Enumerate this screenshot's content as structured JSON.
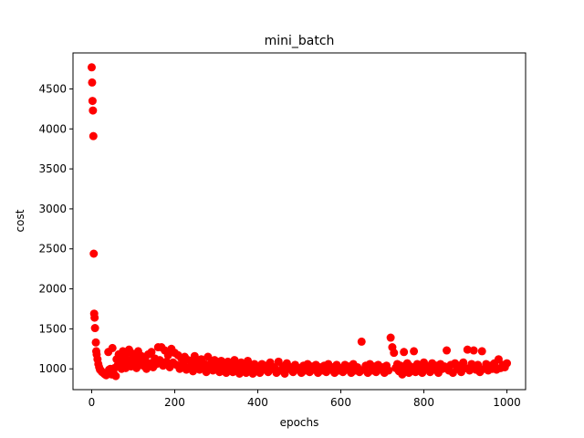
{
  "chart_data": {
    "type": "scatter",
    "title": "mini_batch",
    "xlabel": "epochs",
    "ylabel": "cost",
    "xlim": [
      -45,
      1045
    ],
    "ylim": [
      740,
      4950
    ],
    "xticks": [
      0,
      200,
      400,
      600,
      800,
      1000
    ],
    "yticks": [
      1000,
      1500,
      2000,
      2500,
      3000,
      3500,
      4000,
      4500
    ],
    "grid": false,
    "legend": "none",
    "marker_color": "#ff0000",
    "series": [
      {
        "points": [
          [
            0,
            4770
          ],
          [
            1,
            4580
          ],
          [
            2,
            4350
          ],
          [
            3,
            4230
          ],
          [
            4,
            3910
          ],
          [
            5,
            2440
          ],
          [
            6,
            1690
          ],
          [
            7,
            1640
          ],
          [
            8,
            1510
          ],
          [
            10,
            1330
          ],
          [
            11,
            1220
          ],
          [
            12,
            1180
          ],
          [
            14,
            1120
          ],
          [
            16,
            1060
          ],
          [
            18,
            1020
          ],
          [
            20,
            990
          ],
          [
            22,
            980
          ],
          [
            25,
            960
          ],
          [
            28,
            950
          ],
          [
            30,
            940
          ],
          [
            32,
            930
          ],
          [
            35,
            920
          ],
          [
            38,
            950
          ],
          [
            40,
            1210
          ],
          [
            42,
            990
          ],
          [
            45,
            1000
          ],
          [
            48,
            930
          ],
          [
            50,
            1260
          ],
          [
            52,
            960
          ],
          [
            55,
            1010
          ],
          [
            58,
            910
          ],
          [
            60,
            1120
          ],
          [
            62,
            1040
          ],
          [
            65,
            1180
          ],
          [
            68,
            1090
          ],
          [
            70,
            1130
          ],
          [
            72,
            1000
          ],
          [
            75,
            1220
          ],
          [
            78,
            1060
          ],
          [
            80,
            1150
          ],
          [
            82,
            1010
          ],
          [
            85,
            1200
          ],
          [
            88,
            1080
          ],
          [
            90,
            1240
          ],
          [
            92,
            1110
          ],
          [
            95,
            1030
          ],
          [
            98,
            1190
          ],
          [
            100,
            1080
          ],
          [
            104,
            1150
          ],
          [
            108,
            1010
          ],
          [
            112,
            1220
          ],
          [
            116,
            1090
          ],
          [
            120,
            1160
          ],
          [
            124,
            1040
          ],
          [
            128,
            1120
          ],
          [
            132,
            1000
          ],
          [
            136,
            1180
          ],
          [
            140,
            1070
          ],
          [
            144,
            1210
          ],
          [
            148,
            1020
          ],
          [
            152,
            1130
          ],
          [
            156,
            1060
          ],
          [
            160,
            1270
          ],
          [
            164,
            1110
          ],
          [
            168,
            1270
          ],
          [
            172,
            1040
          ],
          [
            176,
            1230
          ],
          [
            180,
            1090
          ],
          [
            184,
            1170
          ],
          [
            188,
            1020
          ],
          [
            192,
            1250
          ],
          [
            196,
            1080
          ],
          [
            200,
            1200
          ],
          [
            204,
            1050
          ],
          [
            208,
            1170
          ],
          [
            212,
            1000
          ],
          [
            216,
            1130
          ],
          [
            220,
            1060
          ],
          [
            224,
            1150
          ],
          [
            228,
            990
          ],
          [
            232,
            1110
          ],
          [
            236,
            1020
          ],
          [
            240,
            1090
          ],
          [
            244,
            970
          ],
          [
            248,
            1160
          ],
          [
            252,
            1040
          ],
          [
            256,
            1080
          ],
          [
            260,
            990
          ],
          [
            264,
            1120
          ],
          [
            268,
            1010
          ],
          [
            272,
            1060
          ],
          [
            276,
            960
          ],
          [
            280,
            1150
          ],
          [
            284,
            1030
          ],
          [
            288,
            1070
          ],
          [
            292,
            980
          ],
          [
            296,
            1110
          ],
          [
            300,
            1020
          ],
          [
            304,
            1050
          ],
          [
            308,
            960
          ],
          [
            312,
            1100
          ],
          [
            316,
            990
          ],
          [
            320,
            1040
          ],
          [
            324,
            950
          ],
          [
            328,
            1090
          ],
          [
            332,
            1000
          ],
          [
            336,
            1030
          ],
          [
            340,
            960
          ],
          [
            344,
            1110
          ],
          [
            348,
            990
          ],
          [
            352,
            1040
          ],
          [
            356,
            940
          ],
          [
            360,
            1080
          ],
          [
            364,
            1010
          ],
          [
            368,
            1050
          ],
          [
            372,
            950
          ],
          [
            376,
            1100
          ],
          [
            380,
            1000
          ],
          [
            384,
            1030
          ],
          [
            388,
            940
          ],
          [
            392,
            1060
          ],
          [
            396,
            980
          ],
          [
            400,
            1010
          ],
          [
            405,
            950
          ],
          [
            410,
            1060
          ],
          [
            415,
            990
          ],
          [
            420,
            1040
          ],
          [
            425,
            960
          ],
          [
            430,
            1080
          ],
          [
            435,
            1000
          ],
          [
            440,
            1020
          ],
          [
            445,
            950
          ],
          [
            450,
            1090
          ],
          [
            455,
            980
          ],
          [
            460,
            1030
          ],
          [
            465,
            940
          ],
          [
            470,
            1070
          ],
          [
            475,
            1000
          ],
          [
            480,
            1020
          ],
          [
            485,
            960
          ],
          [
            490,
            1050
          ],
          [
            495,
            990
          ],
          [
            500,
            1010
          ],
          [
            505,
            950
          ],
          [
            510,
            1040
          ],
          [
            515,
            980
          ],
          [
            520,
            1060
          ],
          [
            525,
            960
          ],
          [
            530,
            1030
          ],
          [
            535,
            990
          ],
          [
            540,
            1050
          ],
          [
            545,
            950
          ],
          [
            550,
            1020
          ],
          [
            555,
            980
          ],
          [
            560,
            1040
          ],
          [
            565,
            960
          ],
          [
            570,
            1060
          ],
          [
            575,
            990
          ],
          [
            580,
            1020
          ],
          [
            585,
            950
          ],
          [
            590,
            1050
          ],
          [
            595,
            980
          ],
          [
            600,
            1010
          ],
          [
            605,
            960
          ],
          [
            610,
            1050
          ],
          [
            615,
            990
          ],
          [
            620,
            1030
          ],
          [
            625,
            950
          ],
          [
            630,
            1060
          ],
          [
            635,
            980
          ],
          [
            640,
            1020
          ],
          [
            645,
            960
          ],
          [
            650,
            1340
          ],
          [
            655,
            990
          ],
          [
            660,
            1040
          ],
          [
            665,
            950
          ],
          [
            670,
            1060
          ],
          [
            675,
            980
          ],
          [
            680,
            1030
          ],
          [
            685,
            960
          ],
          [
            690,
            1050
          ],
          [
            695,
            990
          ],
          [
            700,
            1020
          ],
          [
            705,
            950
          ],
          [
            710,
            1040
          ],
          [
            715,
            980
          ],
          [
            720,
            1390
          ],
          [
            724,
            1270
          ],
          [
            728,
            1200
          ],
          [
            732,
            1010
          ],
          [
            736,
            1060
          ],
          [
            740,
            970
          ],
          [
            744,
            1040
          ],
          [
            748,
            930
          ],
          [
            752,
            1210
          ],
          [
            756,
            1000
          ],
          [
            760,
            1070
          ],
          [
            764,
            950
          ],
          [
            768,
            1030
          ],
          [
            772,
            1000
          ],
          [
            776,
            1220
          ],
          [
            780,
            960
          ],
          [
            784,
            1060
          ],
          [
            788,
            990
          ],
          [
            792,
            1040
          ],
          [
            796,
            950
          ],
          [
            800,
            1080
          ],
          [
            805,
            1000
          ],
          [
            810,
            1030
          ],
          [
            815,
            960
          ],
          [
            820,
            1070
          ],
          [
            825,
            990
          ],
          [
            830,
            1040
          ],
          [
            835,
            950
          ],
          [
            840,
            1060
          ],
          [
            845,
            1000
          ],
          [
            850,
            1030
          ],
          [
            855,
            1230
          ],
          [
            860,
            980
          ],
          [
            865,
            1050
          ],
          [
            870,
            950
          ],
          [
            875,
            1070
          ],
          [
            880,
            1000
          ],
          [
            885,
            1040
          ],
          [
            890,
            960
          ],
          [
            895,
            1080
          ],
          [
            900,
            1010
          ],
          [
            905,
            1240
          ],
          [
            910,
            980
          ],
          [
            915,
            1060
          ],
          [
            920,
            1230
          ],
          [
            925,
            990
          ],
          [
            930,
            1050
          ],
          [
            935,
            960
          ],
          [
            940,
            1220
          ],
          [
            945,
            1000
          ],
          [
            950,
            1060
          ],
          [
            955,
            980
          ],
          [
            960,
            1040
          ],
          [
            965,
            1000
          ],
          [
            970,
            1070
          ],
          [
            975,
            990
          ],
          [
            980,
            1120
          ],
          [
            985,
            1010
          ],
          [
            990,
            1050
          ],
          [
            995,
            1020
          ],
          [
            1000,
            1070
          ]
        ]
      }
    ]
  }
}
